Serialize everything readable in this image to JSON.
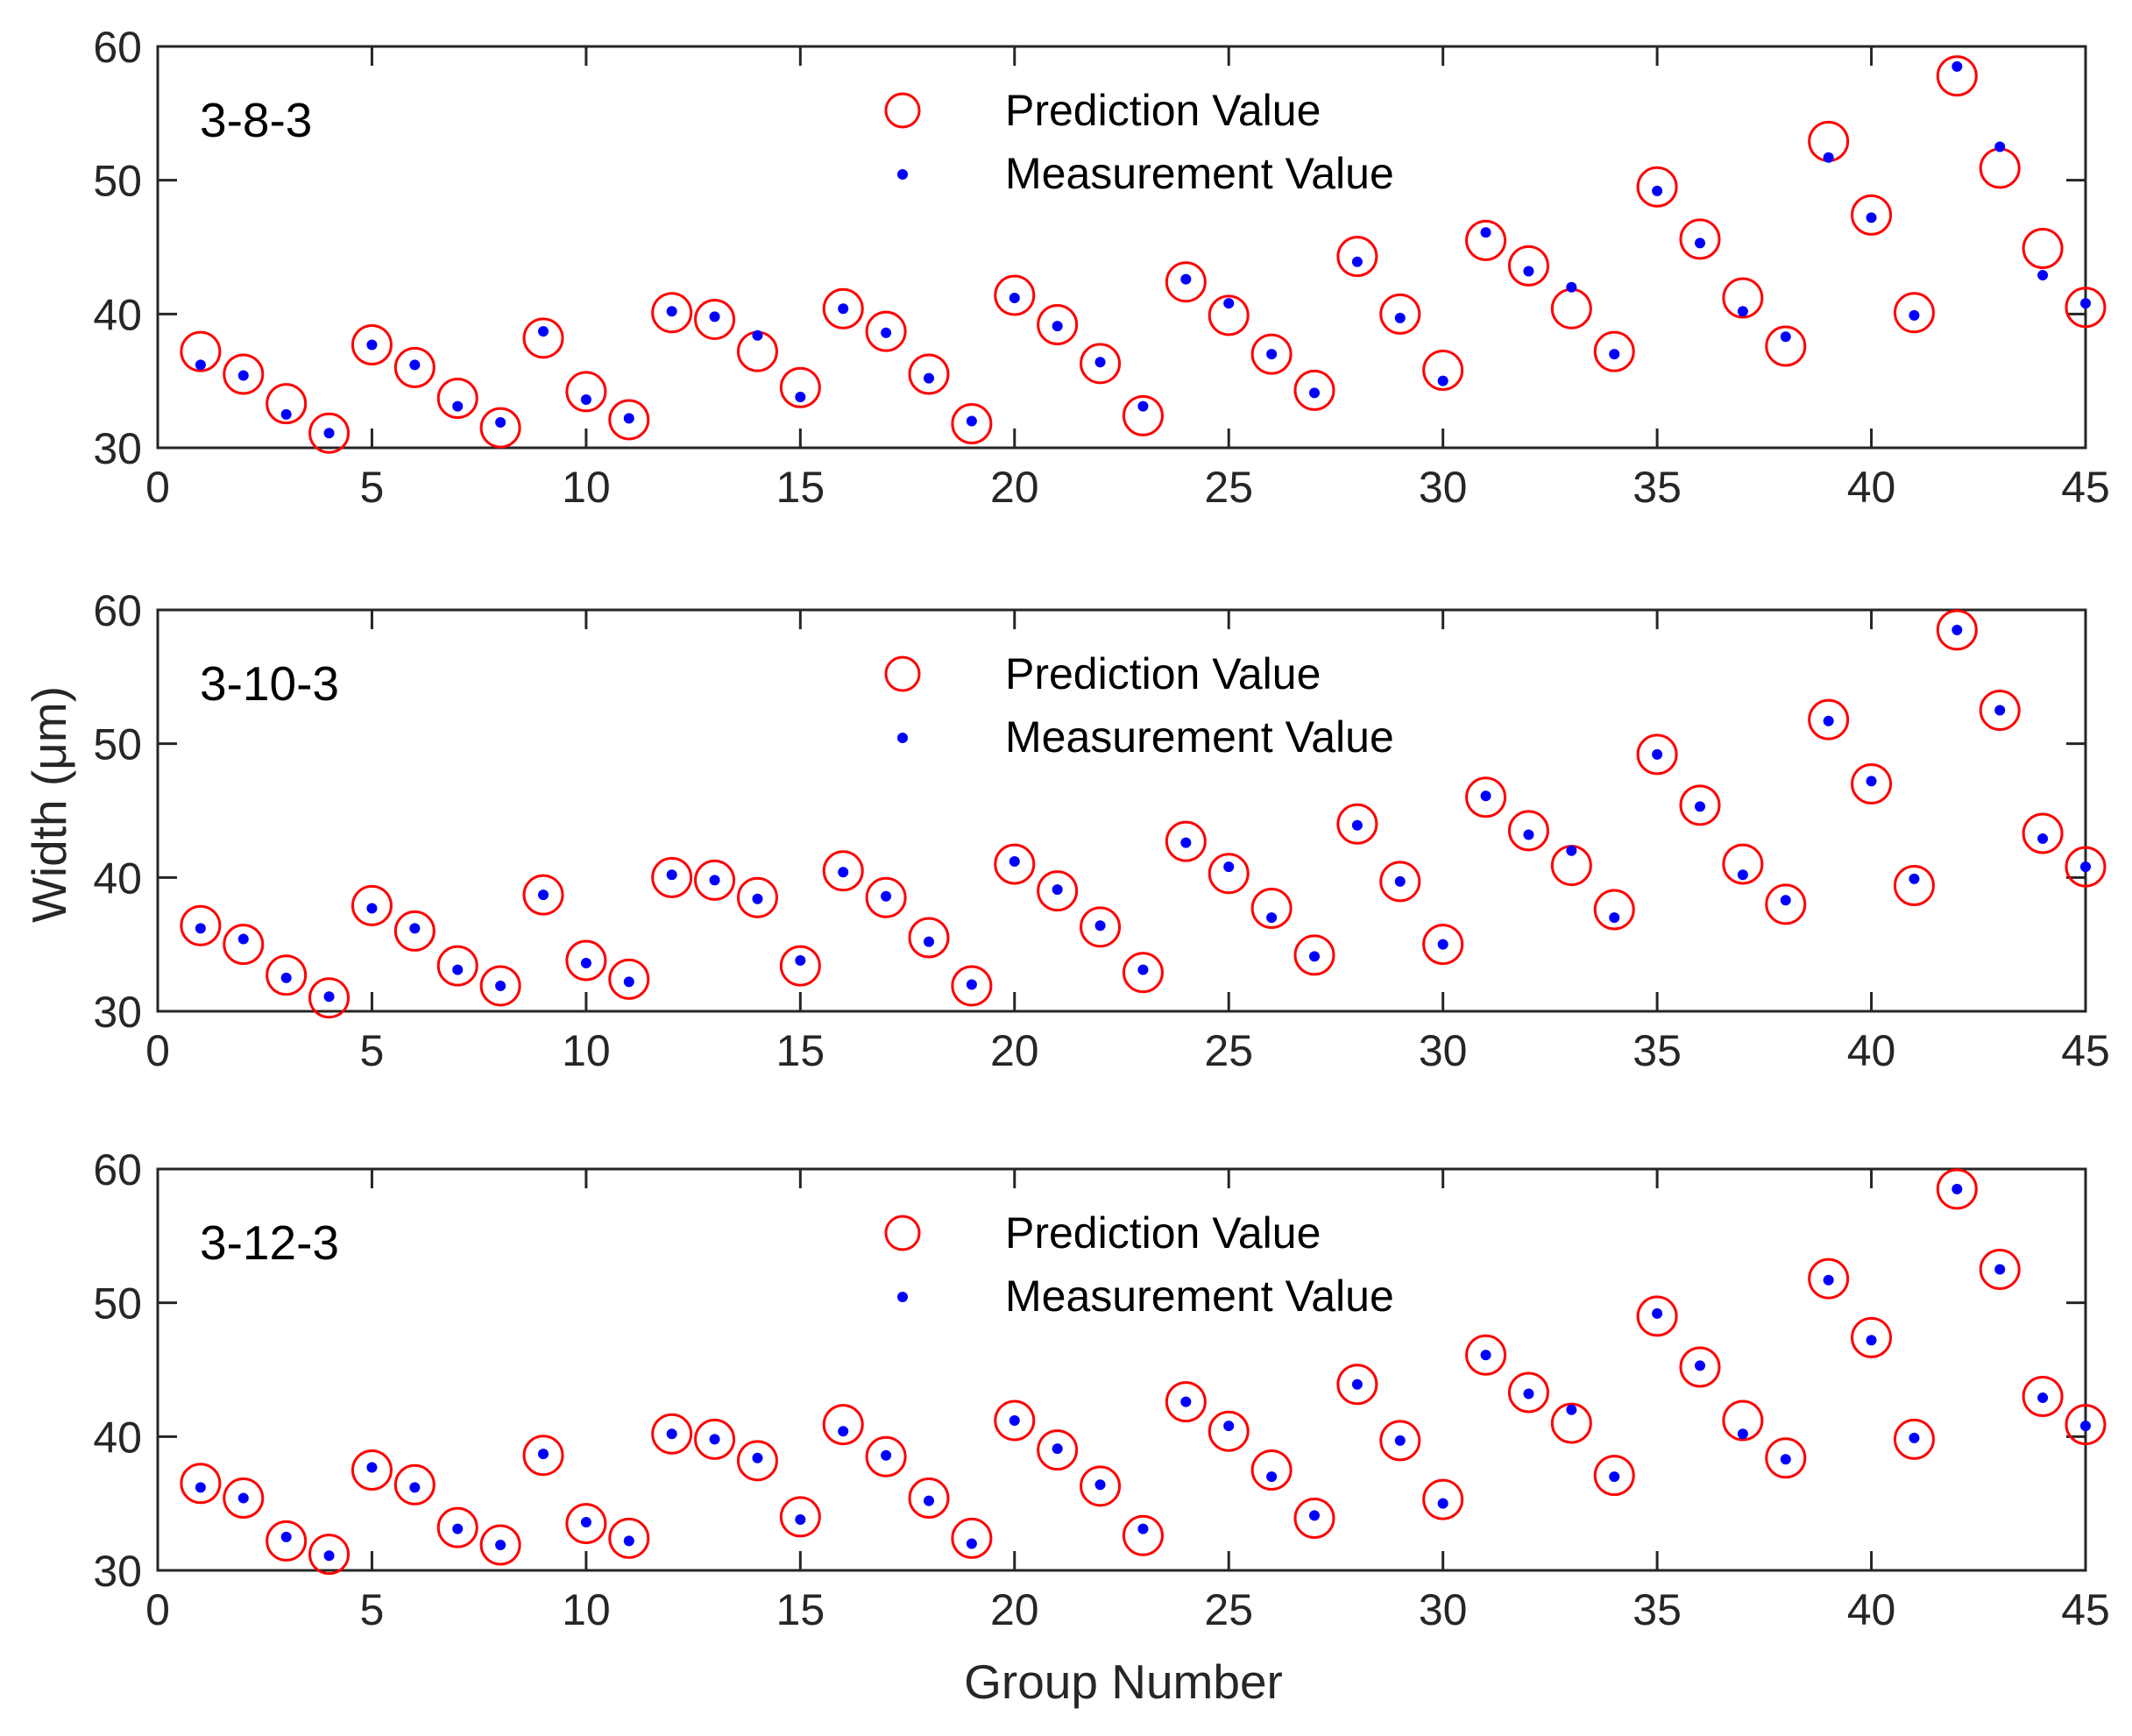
{
  "chart_data": {
    "type": "scatter",
    "xlabel": "Group Number",
    "ylabel": "Width (μm)",
    "xlim": [
      0,
      45
    ],
    "ylim": [
      30,
      60
    ],
    "xticks": [
      "0",
      "5",
      "10",
      "15",
      "20",
      "25",
      "30",
      "35",
      "40",
      "45"
    ],
    "yticks": [
      "30",
      "40",
      "50",
      "60"
    ],
    "colors": {
      "prediction": "#ff0000",
      "measurement": "#0000ff",
      "axes": "#262626"
    },
    "measurement": [
      36.2,
      35.4,
      32.5,
      31.1,
      37.7,
      36.2,
      33.1,
      31.9,
      38.7,
      33.6,
      32.2,
      40.2,
      39.8,
      38.4,
      33.8,
      40.4,
      38.6,
      35.2,
      32.0,
      41.2,
      39.1,
      36.4,
      33.1,
      42.6,
      40.8,
      37.0,
      34.1,
      43.9,
      39.7,
      35.0,
      46.1,
      43.2,
      42.0,
      37.0,
      49.2,
      45.3,
      40.2,
      38.3,
      51.7,
      47.2,
      39.9,
      58.5,
      52.5,
      42.9,
      40.8
    ],
    "panels": [
      {
        "title": "3-8-3",
        "legend": [
          "Prediction Value",
          "Measurement Value"
        ],
        "prediction": [
          37.2,
          35.5,
          33.3,
          31.1,
          37.7,
          36.0,
          33.7,
          31.5,
          38.2,
          34.2,
          32.1,
          40.1,
          39.6,
          37.2,
          34.5,
          40.4,
          38.7,
          35.5,
          31.8,
          41.4,
          39.2,
          36.3,
          32.4,
          42.4,
          39.9,
          37.0,
          34.3,
          44.3,
          40.0,
          35.8,
          45.5,
          43.6,
          40.4,
          37.2,
          49.5,
          45.6,
          41.2,
          37.6,
          52.9,
          47.4,
          40.1,
          57.8,
          50.9,
          44.9,
          40.5
        ]
      },
      {
        "title": "3-10-3",
        "legend": [
          "Prediction Value",
          "Measurement Value"
        ],
        "prediction": [
          36.4,
          35.0,
          32.7,
          31.0,
          37.9,
          36.0,
          33.4,
          31.9,
          38.7,
          33.8,
          32.4,
          40.0,
          39.8,
          38.5,
          33.4,
          40.5,
          38.5,
          35.5,
          31.9,
          41.0,
          39.0,
          36.3,
          32.9,
          42.7,
          40.3,
          37.7,
          34.2,
          44.0,
          39.7,
          35.0,
          46.0,
          43.5,
          40.9,
          37.6,
          49.2,
          45.4,
          41.0,
          38.0,
          51.8,
          47.0,
          39.4,
          58.5,
          52.5,
          43.3,
          40.8
        ]
      },
      {
        "title": "3-12-3",
        "legend": [
          "Prediction Value",
          "Measurement Value"
        ],
        "prediction": [
          36.5,
          35.4,
          32.2,
          31.2,
          37.5,
          36.4,
          33.2,
          31.9,
          38.6,
          33.5,
          32.4,
          40.2,
          39.8,
          38.2,
          34.0,
          40.9,
          38.5,
          35.4,
          32.4,
          41.2,
          39.0,
          36.3,
          32.6,
          42.6,
          40.4,
          37.5,
          33.9,
          43.9,
          39.7,
          35.3,
          46.1,
          43.3,
          41.0,
          37.1,
          49.0,
          45.2,
          41.2,
          38.4,
          51.8,
          47.4,
          39.8,
          58.5,
          52.5,
          43.0,
          40.9
        ]
      }
    ]
  }
}
